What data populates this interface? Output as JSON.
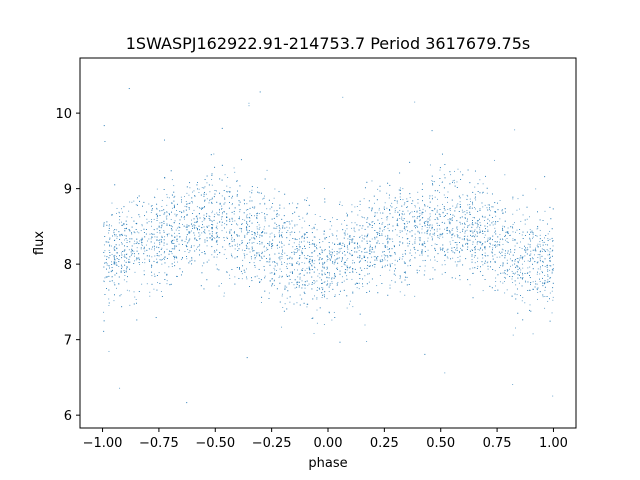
{
  "chart_data": {
    "type": "scatter",
    "title": "1SWASPJ162922.91-214753.7 Period 3617679.75s",
    "xlabel": "phase",
    "ylabel": "flux",
    "xlim": [
      -1.1,
      1.1
    ],
    "ylim": [
      5.83,
      10.73
    ],
    "xticks": [
      -1.0,
      -0.75,
      -0.5,
      -0.25,
      0.0,
      0.25,
      0.5,
      0.75,
      1.0
    ],
    "xtick_labels": [
      "−1.00",
      "−0.75",
      "−0.50",
      "−0.25",
      "0.00",
      "0.25",
      "0.50",
      "0.75",
      "1.00"
    ],
    "yticks": [
      6,
      7,
      8,
      9,
      10
    ],
    "ytick_labels": [
      "6",
      "7",
      "8",
      "9",
      "10"
    ],
    "grid": false,
    "marker_color": "#1f77b4",
    "series": [
      {
        "x_range": [
          -1.0,
          1.0
        ],
        "phased_profile": {
          "phase": [
            0.0,
            0.05,
            0.1,
            0.15,
            0.2,
            0.25,
            0.3,
            0.35,
            0.4,
            0.45,
            0.5,
            0.55,
            0.6,
            0.65,
            0.7,
            0.75,
            0.8,
            0.85,
            0.9,
            0.95,
            1.0
          ],
          "flux_mean": [
            8.0,
            8.1,
            8.2,
            8.25,
            8.3,
            8.35,
            8.4,
            8.45,
            8.5,
            8.55,
            8.55,
            8.5,
            8.45,
            8.4,
            8.35,
            8.25,
            8.15,
            8.1,
            8.05,
            8.0,
            8.0
          ]
        },
        "flux_core_range": [
          7.2,
          9.2
        ],
        "flux_outlier_range": [
          6.05,
          10.45
        ]
      }
    ]
  }
}
